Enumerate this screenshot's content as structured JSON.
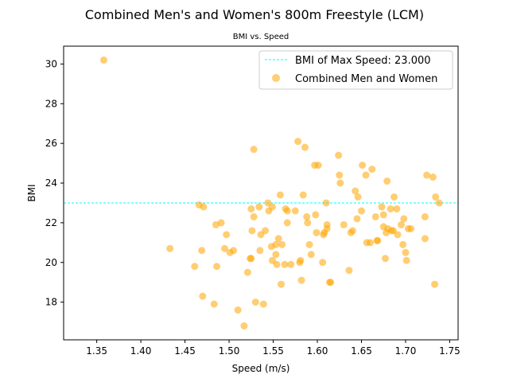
{
  "chart_data": {
    "type": "scatter",
    "title": "Combined Men's and Women's 800m Freestyle (LCM)",
    "subtitle": "BMI vs. Speed",
    "xlabel": "Speed (m/s)",
    "ylabel": "BMI",
    "xlim": [
      1.3125,
      1.7595
    ],
    "ylim": [
      16.1,
      30.9
    ],
    "xticks": [
      "1.35",
      "1.40",
      "1.45",
      "1.50",
      "1.55",
      "1.60",
      "1.65",
      "1.70",
      "1.75"
    ],
    "yticks": [
      "18",
      "20",
      "22",
      "24",
      "26",
      "28",
      "30"
    ],
    "grid": false,
    "legend_position": "top-right",
    "reference_line": {
      "label": "BMI of Max Speed: 23.000",
      "y": 23.0,
      "color": "#00ffff",
      "style": "dashed"
    },
    "series": [
      {
        "name": "Combined Men and Women",
        "color": "#ffa500",
        "opacity": 0.55,
        "x": [
          1.358,
          1.433,
          1.461,
          1.466,
          1.469,
          1.47,
          1.471,
          1.483,
          1.485,
          1.486,
          1.491,
          1.495,
          1.497,
          1.501,
          1.505,
          1.51,
          1.517,
          1.521,
          1.524,
          1.525,
          1.525,
          1.526,
          1.528,
          1.528,
          1.53,
          1.534,
          1.535,
          1.536,
          1.539,
          1.541,
          1.544,
          1.545,
          1.548,
          1.549,
          1.549,
          1.553,
          1.553,
          1.554,
          1.556,
          1.558,
          1.559,
          1.56,
          1.563,
          1.564,
          1.566,
          1.566,
          1.57,
          1.575,
          1.578,
          1.58,
          1.581,
          1.582,
          1.584,
          1.586,
          1.588,
          1.589,
          1.591,
          1.593,
          1.597,
          1.598,
          1.599,
          1.601,
          1.606,
          1.607,
          1.608,
          1.61,
          1.611,
          1.611,
          1.614,
          1.615,
          1.624,
          1.625,
          1.626,
          1.63,
          1.636,
          1.638,
          1.64,
          1.643,
          1.645,
          1.646,
          1.65,
          1.651,
          1.655,
          1.656,
          1.66,
          1.662,
          1.666,
          1.668,
          1.668,
          1.673,
          1.675,
          1.675,
          1.677,
          1.678,
          1.679,
          1.68,
          1.683,
          1.684,
          1.686,
          1.687,
          1.69,
          1.691,
          1.695,
          1.697,
          1.698,
          1.7,
          1.701,
          1.703,
          1.706,
          1.722,
          1.722,
          1.724,
          1.731,
          1.733,
          1.734,
          1.738
        ],
        "y": [
          30.2,
          20.7,
          19.8,
          22.9,
          20.6,
          18.3,
          22.8,
          17.9,
          21.9,
          19.8,
          22.0,
          20.7,
          21.4,
          20.5,
          20.6,
          17.6,
          16.8,
          19.5,
          20.2,
          22.7,
          20.2,
          21.6,
          22.3,
          25.7,
          18.0,
          22.8,
          20.6,
          21.4,
          17.9,
          21.6,
          23.0,
          22.6,
          20.8,
          22.8,
          20.1,
          20.4,
          20.9,
          19.9,
          21.2,
          23.4,
          18.9,
          20.9,
          19.9,
          22.7,
          22.0,
          22.6,
          19.9,
          22.6,
          26.1,
          20.0,
          20.1,
          19.1,
          23.4,
          25.8,
          22.3,
          22.0,
          20.9,
          20.4,
          24.9,
          22.4,
          21.5,
          24.9,
          20.0,
          21.4,
          21.5,
          23.0,
          21.7,
          21.9,
          19.0,
          19.0,
          25.4,
          24.4,
          24.0,
          21.9,
          19.6,
          21.5,
          21.6,
          23.6,
          22.2,
          23.3,
          22.6,
          24.9,
          24.4,
          21.0,
          21.0,
          24.7,
          22.3,
          21.1,
          21.1,
          22.8,
          22.4,
          21.8,
          20.2,
          21.5,
          24.1,
          21.7,
          22.7,
          21.6,
          21.6,
          23.3,
          22.7,
          21.4,
          21.9,
          20.9,
          22.2,
          20.5,
          20.1,
          21.7,
          21.7,
          22.3,
          21.2,
          24.4,
          24.3,
          18.9,
          23.3,
          23.0
        ]
      }
    ]
  }
}
